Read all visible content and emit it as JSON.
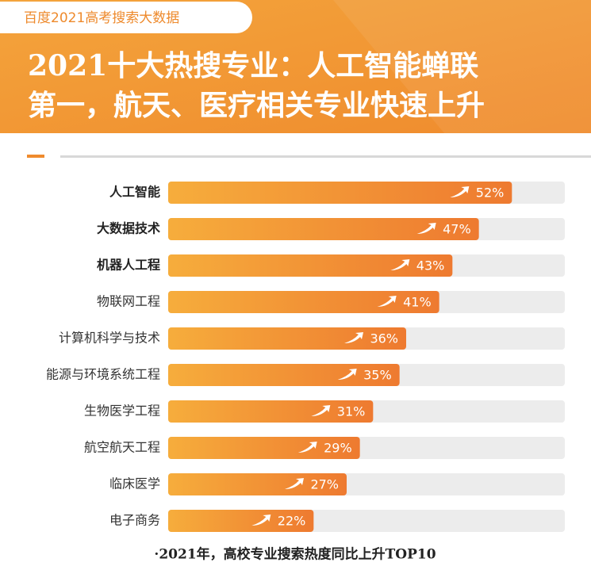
{
  "chart_data": {
    "type": "bar",
    "orientation": "horizontal",
    "source_tag": "百度2021高考搜索大数据",
    "title": [
      "2021十大热搜专业：人工智能蝉联",
      "第一，航天、医疗相关专业快速上升"
    ],
    "categories": [
      "人工智能",
      "大数据技术",
      "机器人工程",
      "物联网工程",
      "计算机科学与技术",
      "能源与环境系统工程",
      "生物医学工程",
      "航空航天工程",
      "临床医学",
      "电子商务"
    ],
    "values": [
      52,
      47,
      43,
      41,
      36,
      35,
      31,
      29,
      27,
      22
    ],
    "value_labels": [
      "52%",
      "47%",
      "43%",
      "41%",
      "36%",
      "35%",
      "31%",
      "29%",
      "27%",
      "22%"
    ],
    "xlim": [
      0,
      60
    ],
    "color": [
      "#f6ad3c",
      "#ee7a30"
    ],
    "note": "·2021年，高校专业搜索热度同比上升TOP10"
  }
}
